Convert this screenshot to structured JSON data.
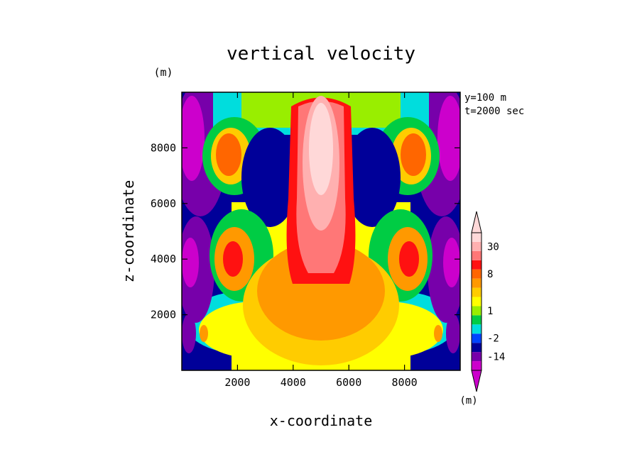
{
  "chart_data": {
    "type": "heatmap",
    "title": "vertical velocity",
    "xlabel": "x-coordinate",
    "ylabel": "z-coordinate",
    "y_unit": "(m)",
    "colorbar_unit": "(m)",
    "annotations": [
      "y=100 m",
      "t=2000 sec"
    ],
    "xlim": [
      0,
      10000
    ],
    "ylim": [
      0,
      10000
    ],
    "x_ticks": [
      2000,
      4000,
      6000,
      8000
    ],
    "y_ticks": [
      2000,
      4000,
      6000,
      8000
    ],
    "grid": false,
    "colorbar": {
      "placement": "right",
      "labels": [
        "30",
        "8",
        "1",
        "-2",
        "-14"
      ],
      "levels": [
        {
          "color": "#cc00cc",
          "label": ""
        },
        {
          "color": "#7700aa",
          "label": "-14"
        },
        {
          "color": "#000099",
          "label": ""
        },
        {
          "color": "#0044ff",
          "label": "-2"
        },
        {
          "color": "#00dddd",
          "label": ""
        },
        {
          "color": "#00cc44",
          "label": ""
        },
        {
          "color": "#99ee00",
          "label": "1"
        },
        {
          "color": "#ffff00",
          "label": ""
        },
        {
          "color": "#ffcc00",
          "label": ""
        },
        {
          "color": "#ff9900",
          "label": ""
        },
        {
          "color": "#ff6600",
          "label": "8"
        },
        {
          "color": "#ff1111",
          "label": ""
        },
        {
          "color": "#ff7777",
          "label": ""
        },
        {
          "color": "#ffb0b0",
          "label": "30"
        },
        {
          "color": "#ffd8d8",
          "label": ""
        }
      ]
    },
    "field_features": [
      {
        "kind": "updraft_core",
        "x": 5000,
        "z_range": [
          3000,
          9800
        ],
        "max": 30
      },
      {
        "kind": "updraft_lobe",
        "x": 2000,
        "z": 4000,
        "value": 8
      },
      {
        "kind": "updraft_lobe",
        "x": 8000,
        "z": 4000,
        "value": 8
      },
      {
        "kind": "updraft_lobe",
        "x": 1800,
        "z": 7500,
        "value": 8
      },
      {
        "kind": "updraft_lobe",
        "x": 8200,
        "z": 7500,
        "value": 8
      },
      {
        "kind": "downdraft",
        "x": 500,
        "z": 8000,
        "value": -14
      },
      {
        "kind": "downdraft",
        "x": 9500,
        "z": 8000,
        "value": -14
      },
      {
        "kind": "downdraft",
        "x": 500,
        "z": 4000,
        "value": -14
      },
      {
        "kind": "downdraft",
        "x": 9500,
        "z": 4000,
        "value": -14
      }
    ]
  }
}
